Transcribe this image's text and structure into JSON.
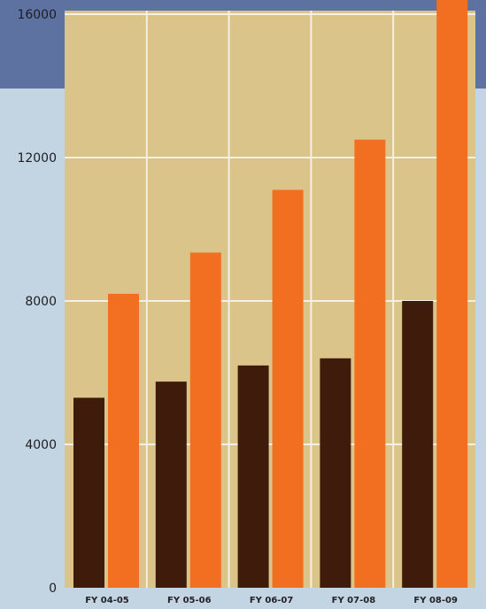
{
  "colors": {
    "header_band": "#5d72a0",
    "background": "#c3d5e2",
    "plot_area": "#dbc489",
    "gridline": "#f4f0e3",
    "series_dark": "#3f1b0c",
    "series_orange": "#f26f22",
    "tick_text": "#1e1e22"
  },
  "chart_data": {
    "type": "bar",
    "categories": [
      "FY 04-05",
      "FY 05-06",
      "FY 06-07",
      "FY 07-08",
      "FY 08-09"
    ],
    "series": [
      {
        "values": [
          5300,
          5750,
          6200,
          6400,
          8000
        ]
      },
      {
        "values": [
          8200,
          9350,
          11100,
          12500,
          16400
        ]
      }
    ],
    "yticks": [
      0,
      4000,
      8000,
      12000,
      16000
    ],
    "ytick_labels": [
      "0",
      "4000",
      "8000",
      "12000",
      "16000"
    ],
    "ylim": [
      0,
      16000
    ],
    "grid": true,
    "legend": "none",
    "title": "",
    "xlabel": "",
    "ylabel": ""
  }
}
